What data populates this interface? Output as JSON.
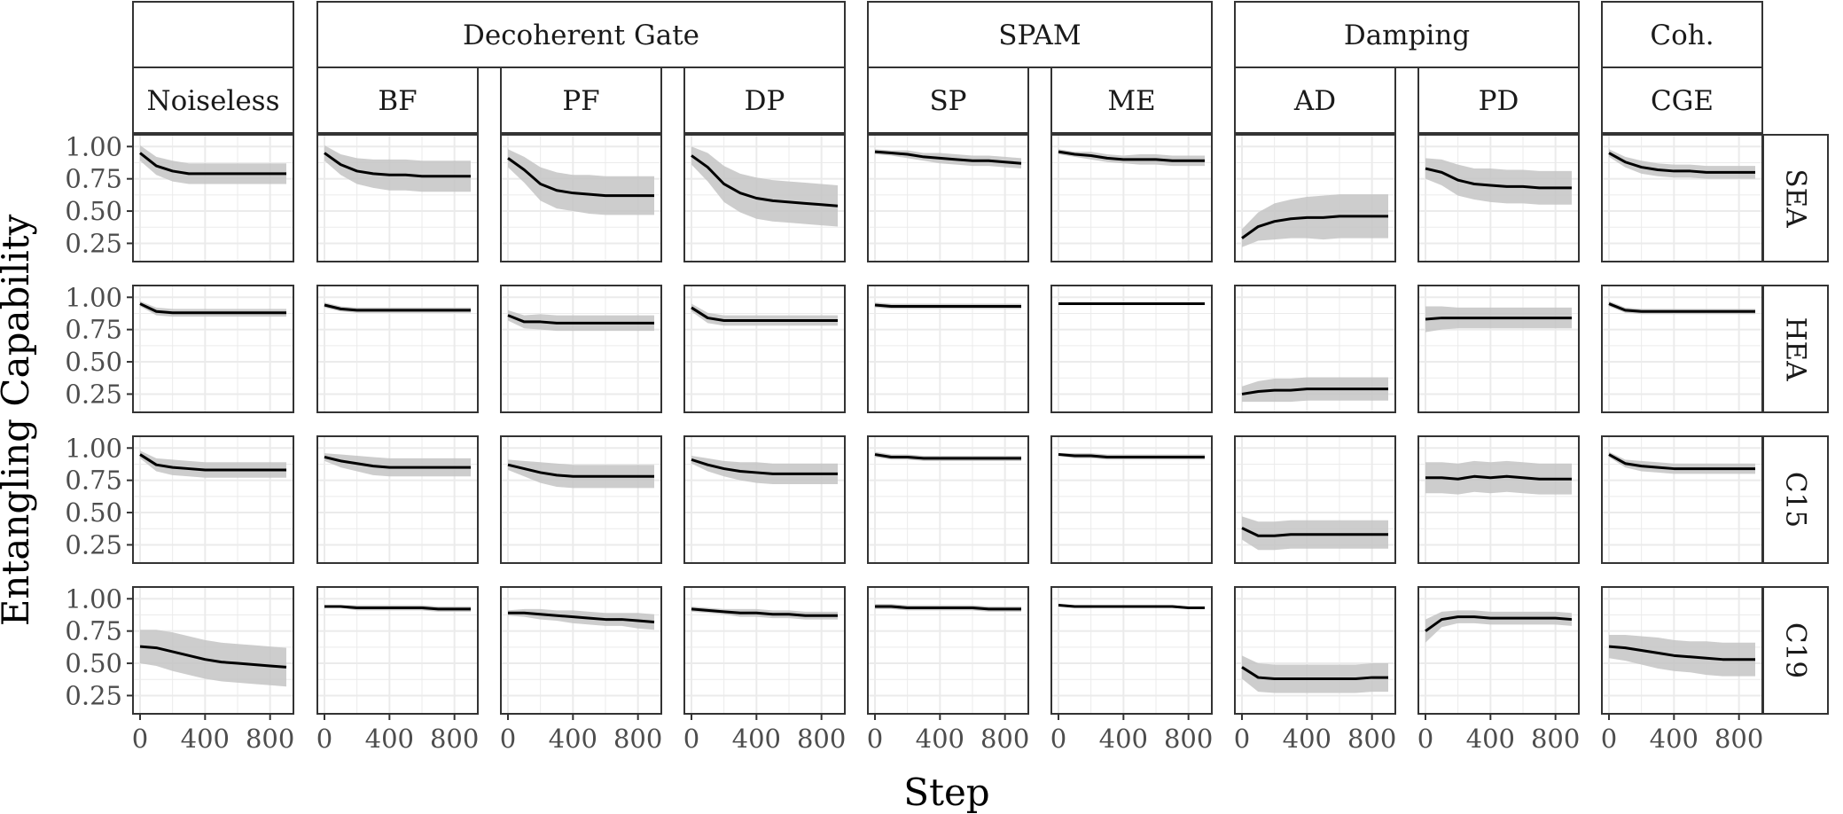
{
  "chart_data": {
    "type": "line",
    "xlabel": "Step",
    "ylabel": "Entangling Capability",
    "xlim": [
      0,
      900
    ],
    "ylim": [
      0.15,
      1.05
    ],
    "x_ticks": [
      0,
      400,
      800
    ],
    "x_tick_labels": [
      "0",
      "400",
      "800"
    ],
    "y_ticks": [
      0.25,
      0.5,
      0.75,
      1.0
    ],
    "y_tick_labels": [
      "0.25",
      "0.50",
      "0.75",
      "1.00"
    ],
    "grid": true,
    "column_groups": [
      {
        "label": "",
        "columns": [
          "Noiseless"
        ]
      },
      {
        "label": "Decoherent Gate",
        "columns": [
          "BF",
          "PF",
          "DP"
        ]
      },
      {
        "label": "SPAM",
        "columns": [
          "SP",
          "ME"
        ]
      },
      {
        "label": "Damping",
        "columns": [
          "AD",
          "PD"
        ]
      },
      {
        "label": "Coh.",
        "columns": [
          "CGE"
        ]
      }
    ],
    "columns": [
      "Noiseless",
      "BF",
      "PF",
      "DP",
      "SP",
      "ME",
      "AD",
      "PD",
      "CGE"
    ],
    "rows": [
      "SEA",
      "HEA",
      "C15",
      "C19"
    ],
    "x": [
      0,
      100,
      200,
      300,
      400,
      500,
      600,
      700,
      800,
      900
    ],
    "series": [
      {
        "row": "SEA",
        "column": "Noiseless",
        "mean": [
          0.95,
          0.85,
          0.81,
          0.79,
          0.79,
          0.79,
          0.79,
          0.79,
          0.79,
          0.79
        ],
        "band": [
          0.06,
          0.07,
          0.08,
          0.08,
          0.08,
          0.08,
          0.08,
          0.08,
          0.08,
          0.08
        ]
      },
      {
        "row": "SEA",
        "column": "BF",
        "mean": [
          0.95,
          0.86,
          0.81,
          0.79,
          0.78,
          0.78,
          0.77,
          0.77,
          0.77,
          0.77
        ],
        "band": [
          0.06,
          0.08,
          0.1,
          0.11,
          0.12,
          0.12,
          0.12,
          0.12,
          0.12,
          0.12
        ]
      },
      {
        "row": "SEA",
        "column": "PF",
        "mean": [
          0.91,
          0.82,
          0.71,
          0.66,
          0.64,
          0.63,
          0.62,
          0.62,
          0.62,
          0.62
        ],
        "band": [
          0.07,
          0.1,
          0.13,
          0.14,
          0.14,
          0.15,
          0.15,
          0.15,
          0.15,
          0.15
        ]
      },
      {
        "row": "SEA",
        "column": "DP",
        "mean": [
          0.93,
          0.84,
          0.71,
          0.64,
          0.6,
          0.58,
          0.57,
          0.56,
          0.55,
          0.54
        ],
        "band": [
          0.07,
          0.11,
          0.14,
          0.15,
          0.16,
          0.16,
          0.16,
          0.16,
          0.16,
          0.16
        ]
      },
      {
        "row": "SEA",
        "column": "SP",
        "mean": [
          0.96,
          0.95,
          0.94,
          0.92,
          0.91,
          0.9,
          0.89,
          0.89,
          0.88,
          0.87
        ],
        "band": [
          0.02,
          0.02,
          0.03,
          0.03,
          0.04,
          0.04,
          0.04,
          0.04,
          0.04,
          0.04
        ]
      },
      {
        "row": "SEA",
        "column": "ME",
        "mean": [
          0.96,
          0.94,
          0.93,
          0.91,
          0.9,
          0.9,
          0.9,
          0.89,
          0.89,
          0.89
        ],
        "band": [
          0.02,
          0.02,
          0.03,
          0.03,
          0.03,
          0.04,
          0.04,
          0.04,
          0.04,
          0.04
        ]
      },
      {
        "row": "SEA",
        "column": "AD",
        "mean": [
          0.29,
          0.38,
          0.42,
          0.44,
          0.45,
          0.45,
          0.46,
          0.46,
          0.46,
          0.46
        ],
        "band": [
          0.07,
          0.11,
          0.14,
          0.15,
          0.16,
          0.17,
          0.17,
          0.17,
          0.17,
          0.17
        ]
      },
      {
        "row": "SEA",
        "column": "PD",
        "mean": [
          0.83,
          0.8,
          0.74,
          0.71,
          0.7,
          0.69,
          0.69,
          0.68,
          0.68,
          0.68
        ],
        "band": [
          0.08,
          0.1,
          0.12,
          0.12,
          0.13,
          0.13,
          0.13,
          0.13,
          0.13,
          0.13
        ]
      },
      {
        "row": "SEA",
        "column": "CGE",
        "mean": [
          0.95,
          0.88,
          0.84,
          0.82,
          0.81,
          0.81,
          0.8,
          0.8,
          0.8,
          0.8
        ],
        "band": [
          0.03,
          0.04,
          0.05,
          0.05,
          0.05,
          0.05,
          0.05,
          0.05,
          0.05,
          0.05
        ]
      },
      {
        "row": "HEA",
        "column": "Noiseless",
        "mean": [
          0.95,
          0.89,
          0.88,
          0.88,
          0.88,
          0.88,
          0.88,
          0.88,
          0.88,
          0.88
        ],
        "band": [
          0.02,
          0.03,
          0.03,
          0.03,
          0.03,
          0.03,
          0.03,
          0.03,
          0.03,
          0.03
        ]
      },
      {
        "row": "HEA",
        "column": "BF",
        "mean": [
          0.94,
          0.91,
          0.9,
          0.9,
          0.9,
          0.9,
          0.9,
          0.9,
          0.9,
          0.9
        ],
        "band": [
          0.02,
          0.02,
          0.02,
          0.02,
          0.02,
          0.02,
          0.02,
          0.02,
          0.02,
          0.02
        ]
      },
      {
        "row": "HEA",
        "column": "PF",
        "mean": [
          0.86,
          0.81,
          0.81,
          0.8,
          0.8,
          0.8,
          0.8,
          0.8,
          0.8,
          0.8
        ],
        "band": [
          0.04,
          0.05,
          0.06,
          0.06,
          0.06,
          0.06,
          0.06,
          0.06,
          0.06,
          0.06
        ]
      },
      {
        "row": "HEA",
        "column": "DP",
        "mean": [
          0.92,
          0.84,
          0.82,
          0.82,
          0.82,
          0.82,
          0.82,
          0.82,
          0.82,
          0.82
        ],
        "band": [
          0.03,
          0.04,
          0.04,
          0.04,
          0.04,
          0.04,
          0.04,
          0.04,
          0.04,
          0.04
        ]
      },
      {
        "row": "HEA",
        "column": "SP",
        "mean": [
          0.94,
          0.93,
          0.93,
          0.93,
          0.93,
          0.93,
          0.93,
          0.93,
          0.93,
          0.93
        ],
        "band": [
          0.02,
          0.02,
          0.02,
          0.02,
          0.02,
          0.02,
          0.02,
          0.02,
          0.02,
          0.02
        ]
      },
      {
        "row": "HEA",
        "column": "ME",
        "mean": [
          0.95,
          0.95,
          0.95,
          0.95,
          0.95,
          0.95,
          0.95,
          0.95,
          0.95,
          0.95
        ],
        "band": [
          0.01,
          0.01,
          0.01,
          0.01,
          0.01,
          0.01,
          0.01,
          0.01,
          0.01,
          0.01
        ]
      },
      {
        "row": "HEA",
        "column": "AD",
        "mean": [
          0.25,
          0.27,
          0.28,
          0.28,
          0.29,
          0.29,
          0.29,
          0.29,
          0.29,
          0.29
        ],
        "band": [
          0.06,
          0.08,
          0.09,
          0.09,
          0.09,
          0.09,
          0.09,
          0.09,
          0.09,
          0.09
        ]
      },
      {
        "row": "HEA",
        "column": "PD",
        "mean": [
          0.83,
          0.84,
          0.84,
          0.84,
          0.84,
          0.84,
          0.84,
          0.84,
          0.84,
          0.84
        ],
        "band": [
          0.1,
          0.09,
          0.08,
          0.08,
          0.08,
          0.08,
          0.08,
          0.08,
          0.08,
          0.08
        ]
      },
      {
        "row": "HEA",
        "column": "CGE",
        "mean": [
          0.95,
          0.9,
          0.89,
          0.89,
          0.89,
          0.89,
          0.89,
          0.89,
          0.89,
          0.89
        ],
        "band": [
          0.02,
          0.02,
          0.02,
          0.02,
          0.02,
          0.02,
          0.02,
          0.02,
          0.02,
          0.02
        ]
      },
      {
        "row": "C15",
        "column": "Noiseless",
        "mean": [
          0.95,
          0.87,
          0.85,
          0.84,
          0.83,
          0.83,
          0.83,
          0.83,
          0.83,
          0.83
        ],
        "band": [
          0.03,
          0.05,
          0.06,
          0.06,
          0.06,
          0.06,
          0.06,
          0.06,
          0.06,
          0.06
        ]
      },
      {
        "row": "C15",
        "column": "BF",
        "mean": [
          0.93,
          0.9,
          0.88,
          0.86,
          0.85,
          0.85,
          0.85,
          0.85,
          0.85,
          0.85
        ],
        "band": [
          0.03,
          0.05,
          0.06,
          0.07,
          0.07,
          0.07,
          0.07,
          0.07,
          0.07,
          0.07
        ]
      },
      {
        "row": "C15",
        "column": "PF",
        "mean": [
          0.87,
          0.84,
          0.81,
          0.79,
          0.78,
          0.78,
          0.78,
          0.78,
          0.78,
          0.78
        ],
        "band": [
          0.04,
          0.06,
          0.08,
          0.09,
          0.09,
          0.09,
          0.09,
          0.09,
          0.09,
          0.09
        ]
      },
      {
        "row": "C15",
        "column": "DP",
        "mean": [
          0.91,
          0.87,
          0.84,
          0.82,
          0.81,
          0.8,
          0.8,
          0.8,
          0.8,
          0.8
        ],
        "band": [
          0.03,
          0.05,
          0.06,
          0.07,
          0.08,
          0.08,
          0.08,
          0.08,
          0.08,
          0.08
        ]
      },
      {
        "row": "C15",
        "column": "SP",
        "mean": [
          0.95,
          0.93,
          0.93,
          0.92,
          0.92,
          0.92,
          0.92,
          0.92,
          0.92,
          0.92
        ],
        "band": [
          0.02,
          0.02,
          0.02,
          0.02,
          0.02,
          0.02,
          0.02,
          0.02,
          0.02,
          0.02
        ]
      },
      {
        "row": "C15",
        "column": "ME",
        "mean": [
          0.95,
          0.94,
          0.94,
          0.93,
          0.93,
          0.93,
          0.93,
          0.93,
          0.93,
          0.93
        ],
        "band": [
          0.01,
          0.02,
          0.02,
          0.02,
          0.02,
          0.02,
          0.02,
          0.02,
          0.02,
          0.02
        ]
      },
      {
        "row": "C15",
        "column": "AD",
        "mean": [
          0.38,
          0.32,
          0.32,
          0.33,
          0.33,
          0.33,
          0.33,
          0.33,
          0.33,
          0.33
        ],
        "band": [
          0.09,
          0.11,
          0.11,
          0.11,
          0.11,
          0.11,
          0.11,
          0.11,
          0.11,
          0.11
        ]
      },
      {
        "row": "C15",
        "column": "PD",
        "mean": [
          0.77,
          0.77,
          0.76,
          0.78,
          0.77,
          0.78,
          0.77,
          0.76,
          0.76,
          0.76
        ],
        "band": [
          0.12,
          0.12,
          0.12,
          0.12,
          0.12,
          0.12,
          0.12,
          0.12,
          0.12,
          0.12
        ]
      },
      {
        "row": "C15",
        "column": "CGE",
        "mean": [
          0.95,
          0.88,
          0.86,
          0.85,
          0.84,
          0.84,
          0.84,
          0.84,
          0.84,
          0.84
        ],
        "band": [
          0.02,
          0.03,
          0.04,
          0.04,
          0.04,
          0.04,
          0.04,
          0.04,
          0.04,
          0.04
        ]
      },
      {
        "row": "C19",
        "column": "Noiseless",
        "mean": [
          0.63,
          0.62,
          0.59,
          0.56,
          0.53,
          0.51,
          0.5,
          0.49,
          0.48,
          0.47
        ],
        "band": [
          0.13,
          0.14,
          0.15,
          0.15,
          0.15,
          0.15,
          0.15,
          0.15,
          0.15,
          0.15
        ]
      },
      {
        "row": "C19",
        "column": "BF",
        "mean": [
          0.94,
          0.94,
          0.93,
          0.93,
          0.93,
          0.93,
          0.93,
          0.92,
          0.92,
          0.92
        ],
        "band": [
          0.01,
          0.01,
          0.02,
          0.02,
          0.02,
          0.02,
          0.02,
          0.02,
          0.02,
          0.02
        ]
      },
      {
        "row": "C19",
        "column": "PF",
        "mean": [
          0.89,
          0.89,
          0.88,
          0.87,
          0.86,
          0.85,
          0.84,
          0.84,
          0.83,
          0.82
        ],
        "band": [
          0.02,
          0.03,
          0.04,
          0.04,
          0.05,
          0.05,
          0.05,
          0.05,
          0.06,
          0.06
        ]
      },
      {
        "row": "C19",
        "column": "DP",
        "mean": [
          0.92,
          0.91,
          0.9,
          0.89,
          0.89,
          0.88,
          0.88,
          0.87,
          0.87,
          0.87
        ],
        "band": [
          0.02,
          0.02,
          0.02,
          0.03,
          0.03,
          0.03,
          0.03,
          0.03,
          0.03,
          0.03
        ]
      },
      {
        "row": "C19",
        "column": "SP",
        "mean": [
          0.94,
          0.94,
          0.93,
          0.93,
          0.93,
          0.93,
          0.93,
          0.92,
          0.92,
          0.92
        ],
        "band": [
          0.02,
          0.02,
          0.02,
          0.02,
          0.02,
          0.02,
          0.02,
          0.02,
          0.02,
          0.02
        ]
      },
      {
        "row": "C19",
        "column": "ME",
        "mean": [
          0.95,
          0.94,
          0.94,
          0.94,
          0.94,
          0.94,
          0.94,
          0.94,
          0.93,
          0.93
        ],
        "band": [
          0.01,
          0.01,
          0.01,
          0.01,
          0.01,
          0.01,
          0.01,
          0.01,
          0.01,
          0.01
        ]
      },
      {
        "row": "C19",
        "column": "AD",
        "mean": [
          0.47,
          0.39,
          0.38,
          0.38,
          0.38,
          0.38,
          0.38,
          0.38,
          0.39,
          0.39
        ],
        "band": [
          0.09,
          0.11,
          0.11,
          0.11,
          0.11,
          0.11,
          0.11,
          0.11,
          0.11,
          0.11
        ]
      },
      {
        "row": "C19",
        "column": "PD",
        "mean": [
          0.75,
          0.84,
          0.86,
          0.86,
          0.85,
          0.85,
          0.85,
          0.85,
          0.85,
          0.84
        ],
        "band": [
          0.09,
          0.06,
          0.05,
          0.05,
          0.05,
          0.05,
          0.05,
          0.05,
          0.05,
          0.05
        ]
      },
      {
        "row": "C19",
        "column": "CGE",
        "mean": [
          0.63,
          0.62,
          0.6,
          0.58,
          0.56,
          0.55,
          0.54,
          0.53,
          0.53,
          0.53
        ],
        "band": [
          0.09,
          0.1,
          0.11,
          0.12,
          0.12,
          0.12,
          0.13,
          0.13,
          0.13,
          0.13
        ]
      }
    ]
  },
  "colors": {
    "line": "#000000",
    "ribbon": "#c4c4c4",
    "grid": "#ebebeb",
    "panel_border": "#333333",
    "strip_fill": "#ffffff"
  }
}
